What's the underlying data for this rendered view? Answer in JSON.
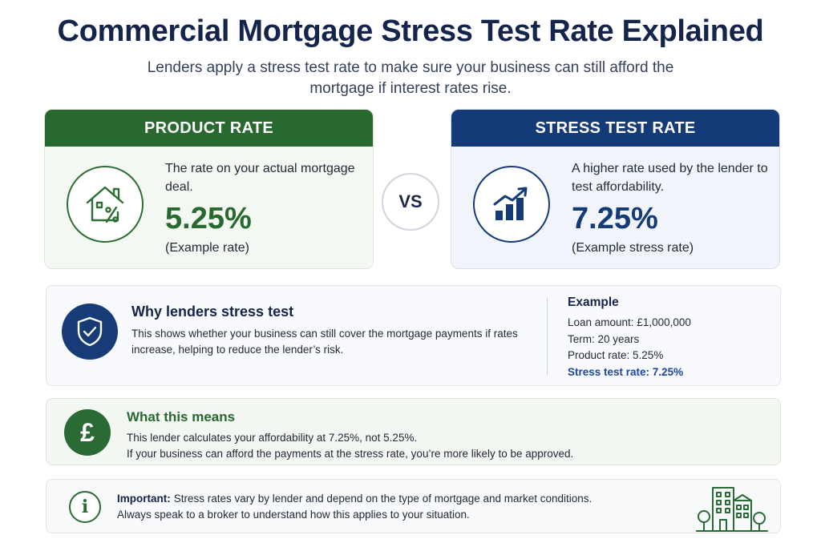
{
  "header": {
    "title": "Commercial Mortgage Stress Test Rate Explained",
    "subtitle": "Lenders apply a stress test rate to make sure your business can still afford the mortgage if interest rates rise."
  },
  "product_rate": {
    "heading": "PRODUCT RATE",
    "description": "The rate on your actual mortgage deal.",
    "value": "5.25%",
    "note": "(Example rate)",
    "icon": "house-percent-icon",
    "color": "#27692f"
  },
  "vs_label": "VS",
  "stress_rate": {
    "heading": "STRESS TEST RATE",
    "description": "A higher rate used by the lender to test affordability.",
    "value": "7.25%",
    "note": "(Example stress rate)",
    "icon": "rising-bar-chart-icon",
    "color": "#153a78"
  },
  "why": {
    "title": "Why lenders stress test",
    "body": "This shows whether your business can still cover the mortgage payments if rates increase, helping to reduce the lender’s risk.",
    "icon": "shield-check-icon",
    "example": {
      "title": "Example",
      "loan": "Loan amount: £1,000,000",
      "term": "Term: 20 years",
      "product_rate": "Product rate: 5.25%",
      "stress_rate": "Stress test rate: 7.25%"
    }
  },
  "means": {
    "title": "What this means",
    "icon": "pound-icon",
    "icon_glyph": "£",
    "line1": "This lender calculates your affordability at 7.25%, not 5.25%.",
    "line2": "If your business can afford the payments at the stress rate, you’re more likely to be approved."
  },
  "important": {
    "icon": "info-icon",
    "icon_glyph": "i",
    "label": "Important:",
    "line1": "Stress rates vary by lender and depend on the type of mortgage and market conditions.",
    "line2": "Always speak to a broker to understand how this applies to your situation.",
    "illustration": "city-buildings-icon"
  }
}
